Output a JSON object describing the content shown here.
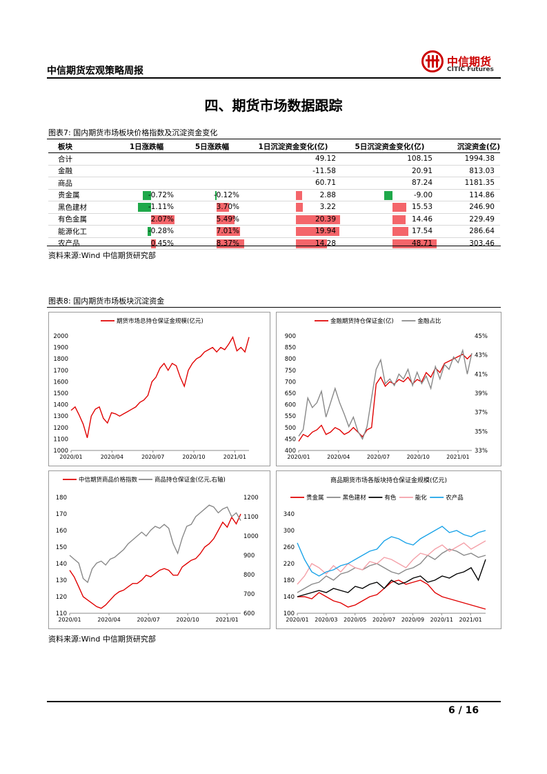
{
  "header": {
    "title": "中信期货宏观策略周报",
    "logo_cn": "中信期货",
    "logo_en": "CITIC Futures"
  },
  "section_title": "四、期货市场数据跟踪",
  "table7": {
    "caption": "图表7:  国内期货市场板块价格指数及沉淀资金变化",
    "headers": [
      "板块",
      "1日涨跌幅",
      "5日涨跌幅",
      "1日沉淀资金变化(亿)",
      "5日沉淀资金变化(亿)",
      "沉淀资金(亿)"
    ],
    "rows": [
      {
        "name": "合计",
        "d1": "",
        "d5": "",
        "c1": "49.12",
        "c5": "108.15",
        "total": "1994.38"
      },
      {
        "name": "金融",
        "d1": "",
        "d5": "",
        "c1": "-11.58",
        "c5": "20.91",
        "total": "813.03"
      },
      {
        "name": "商品",
        "d1": "",
        "d5": "",
        "c1": "60.71",
        "c5": "87.24",
        "total": "1181.35"
      },
      {
        "name": "贵金属",
        "d1": "-0.72%",
        "d5": "-0.12%",
        "c1": "2.88",
        "c5": "-9.00",
        "total": "114.86"
      },
      {
        "name": "黑色建材",
        "d1": "-1.11%",
        "d5": "3.70%",
        "c1": "3.22",
        "c5": "15.53",
        "total": "246.90"
      },
      {
        "name": "有色金属",
        "d1": "2.07%",
        "d5": "5.49%",
        "c1": "20.39",
        "c5": "14.46",
        "total": "229.49"
      },
      {
        "name": "能源化工",
        "d1": "-0.28%",
        "d5": "7.01%",
        "c1": "19.94",
        "c5": "17.54",
        "total": "286.64"
      },
      {
        "name": "农产品",
        "d1": "0.45%",
        "d5": "8.37%",
        "c1": "14.28",
        "c5": "48.71",
        "total": "303.46"
      }
    ],
    "bar_data": {
      "d1": [
        null,
        null,
        null,
        -0.72,
        -1.11,
        2.07,
        -0.28,
        0.45
      ],
      "d5": [
        null,
        null,
        null,
        -0.12,
        3.7,
        5.49,
        7.01,
        8.37
      ],
      "c1": [
        null,
        null,
        null,
        2.88,
        3.22,
        20.39,
        19.94,
        14.28
      ],
      "c5": [
        null,
        null,
        null,
        -9.0,
        15.53,
        14.46,
        17.54,
        48.71
      ]
    },
    "colors": {
      "positive": "#f4656a",
      "negative": "#1fa84a"
    }
  },
  "source_1": "资料来源:Wind 中信期货研究部",
  "fig8_caption": "图表8:  国内期货市场板块沉淀资金",
  "source_2": "资料来源:Wind 中信期货研究部",
  "page": "6 / 16",
  "chart_data": [
    {
      "type": "line",
      "legend": [
        "期货市场总持仓保证金规模(亿元)"
      ],
      "x_ticks": [
        "2020/01",
        "2020/04",
        "2020/07",
        "2020/10",
        "2021/01"
      ],
      "ylim": [
        1000,
        2000
      ],
      "y_ticks": [
        "2000",
        "1900",
        "1800",
        "1700",
        "1600",
        "1500",
        "1400",
        "1300",
        "1200",
        "1100",
        "1000"
      ],
      "series": [
        {
          "name": "期货市场总持仓保证金规模(亿元)",
          "color": "#e00000",
          "values": [
            1350,
            1380,
            1310,
            1230,
            1110,
            1300,
            1360,
            1380,
            1280,
            1240,
            1330,
            1320,
            1300,
            1320,
            1340,
            1360,
            1380,
            1420,
            1440,
            1480,
            1600,
            1640,
            1720,
            1760,
            1700,
            1760,
            1740,
            1640,
            1560,
            1700,
            1760,
            1800,
            1820,
            1860,
            1880,
            1900,
            1860,
            1900,
            1880,
            1930,
            1990,
            1870,
            1900,
            1860,
            1990
          ]
        }
      ]
    },
    {
      "type": "line",
      "legend": [
        "金融期货持仓保证金(亿)",
        "金融占比"
      ],
      "x_ticks": [
        "2020/01",
        "2020/04",
        "2020/07",
        "2020/10",
        "2021/01"
      ],
      "ylim": [
        400,
        900
      ],
      "y_ticks": [
        "900",
        "850",
        "800",
        "750",
        "700",
        "650",
        "600",
        "550",
        "500",
        "450",
        "400"
      ],
      "y2_ticks": [
        "45%",
        "43%",
        "41%",
        "39%",
        "37%",
        "35%",
        "33%"
      ],
      "series": [
        {
          "name": "金融期货持仓保证金(亿)",
          "color": "#e00000",
          "values": [
            440,
            470,
            460,
            480,
            490,
            510,
            470,
            480,
            500,
            490,
            470,
            480,
            500,
            480,
            460,
            490,
            500,
            690,
            720,
            680,
            700,
            690,
            710,
            700,
            720,
            690,
            710,
            700,
            740,
            720,
            760,
            740,
            780,
            790,
            800,
            810,
            820,
            800,
            820
          ]
        },
        {
          "name": "金融占比",
          "color": "#888888",
          "values": [
            34.5,
            35.2,
            38.5,
            37.5,
            38.0,
            39.2,
            36.5,
            38.0,
            39.5,
            38.0,
            36.8,
            35.5,
            36.5,
            35.0,
            34.2,
            35.5,
            38.5,
            41.5,
            42.5,
            40.0,
            40.5,
            39.8,
            41.0,
            40.5,
            41.5,
            39.8,
            41.2,
            40.0,
            40.8,
            39.5,
            41.8,
            40.5,
            42.0,
            41.5,
            42.8,
            42.2,
            43.5,
            41.0,
            43.2
          ]
        }
      ]
    },
    {
      "type": "line",
      "legend": [
        "中信期货商品价格指数",
        "商品持仓保证金(亿元,右轴)"
      ],
      "x_ticks": [
        "2020/01",
        "2020/04",
        "2020/07",
        "2020/10",
        "2021/01"
      ],
      "ylim": [
        110,
        180
      ],
      "y_ticks": [
        "180",
        "170",
        "160",
        "150",
        "140",
        "130",
        "120",
        "110"
      ],
      "y2_ticks": [
        "1200",
        "1100",
        "1000",
        "900",
        "800",
        "700",
        "600"
      ],
      "series": [
        {
          "name": "中信期货商品价格指数",
          "color": "#e00000",
          "values": [
            136,
            132,
            126,
            120,
            118,
            116,
            114,
            113,
            115,
            118,
            121,
            123,
            124,
            126,
            128,
            128,
            130,
            133,
            132,
            134,
            136,
            137,
            136,
            133,
            133,
            138,
            140,
            142,
            143,
            146,
            150,
            152,
            155,
            160,
            165,
            162,
            168,
            164,
            170
          ]
        },
        {
          "name": "商品持仓保证金(亿元,右轴)",
          "color": "#888888",
          "values": [
            900,
            880,
            860,
            780,
            760,
            830,
            860,
            870,
            850,
            880,
            890,
            910,
            930,
            960,
            980,
            1000,
            1020,
            1000,
            1030,
            1050,
            1040,
            1060,
            1040,
            960,
            910,
            990,
            1050,
            1060,
            1100,
            1120,
            1140,
            1160,
            1150,
            1120,
            1140,
            1150,
            1100,
            1120,
            1080
          ]
        }
      ]
    },
    {
      "type": "line",
      "title": "商品期货市场各版块持仓保证金规模(亿元)",
      "legend": [
        "贵金属",
        "黑色建材",
        "有色",
        "能化",
        "农产品"
      ],
      "x_ticks": [
        "2020/01",
        "2020/03",
        "2020/05",
        "2020/07",
        "2020/09",
        "2020/11",
        "2021/01"
      ],
      "ylim": [
        100,
        340
      ],
      "y_ticks": [
        "340",
        "300",
        "260",
        "220",
        "180",
        "140",
        "100"
      ],
      "series": [
        {
          "name": "贵金属",
          "color": "#e00000",
          "values": [
            140,
            140,
            135,
            150,
            140,
            130,
            125,
            115,
            120,
            130,
            140,
            145,
            160,
            175,
            180,
            170,
            175,
            180,
            170,
            150,
            140,
            135,
            130,
            125,
            120,
            115,
            110
          ]
        },
        {
          "name": "黑色建材",
          "color": "#888888",
          "values": [
            150,
            160,
            170,
            175,
            190,
            180,
            195,
            200,
            210,
            205,
            215,
            220,
            210,
            200,
            195,
            205,
            210,
            220,
            240,
            230,
            245,
            255,
            250,
            240,
            245,
            235,
            240
          ]
        },
        {
          "name": "有色",
          "color": "#000000",
          "values": [
            140,
            145,
            150,
            155,
            150,
            160,
            155,
            150,
            165,
            160,
            170,
            175,
            160,
            180,
            170,
            175,
            185,
            190,
            175,
            180,
            190,
            185,
            195,
            200,
            210,
            180,
            230
          ]
        },
        {
          "name": "能化",
          "color": "#f4a0a8",
          "values": [
            170,
            190,
            220,
            210,
            195,
            215,
            200,
            220,
            210,
            205,
            225,
            220,
            235,
            230,
            220,
            210,
            230,
            245,
            240,
            255,
            265,
            250,
            260,
            270,
            255,
            265,
            275
          ]
        },
        {
          "name": "农产品",
          "color": "#1aa3e8",
          "values": [
            270,
            230,
            200,
            190,
            200,
            205,
            215,
            220,
            230,
            240,
            250,
            255,
            275,
            285,
            280,
            270,
            265,
            280,
            290,
            300,
            310,
            295,
            300,
            290,
            285,
            295,
            300
          ]
        }
      ]
    }
  ]
}
